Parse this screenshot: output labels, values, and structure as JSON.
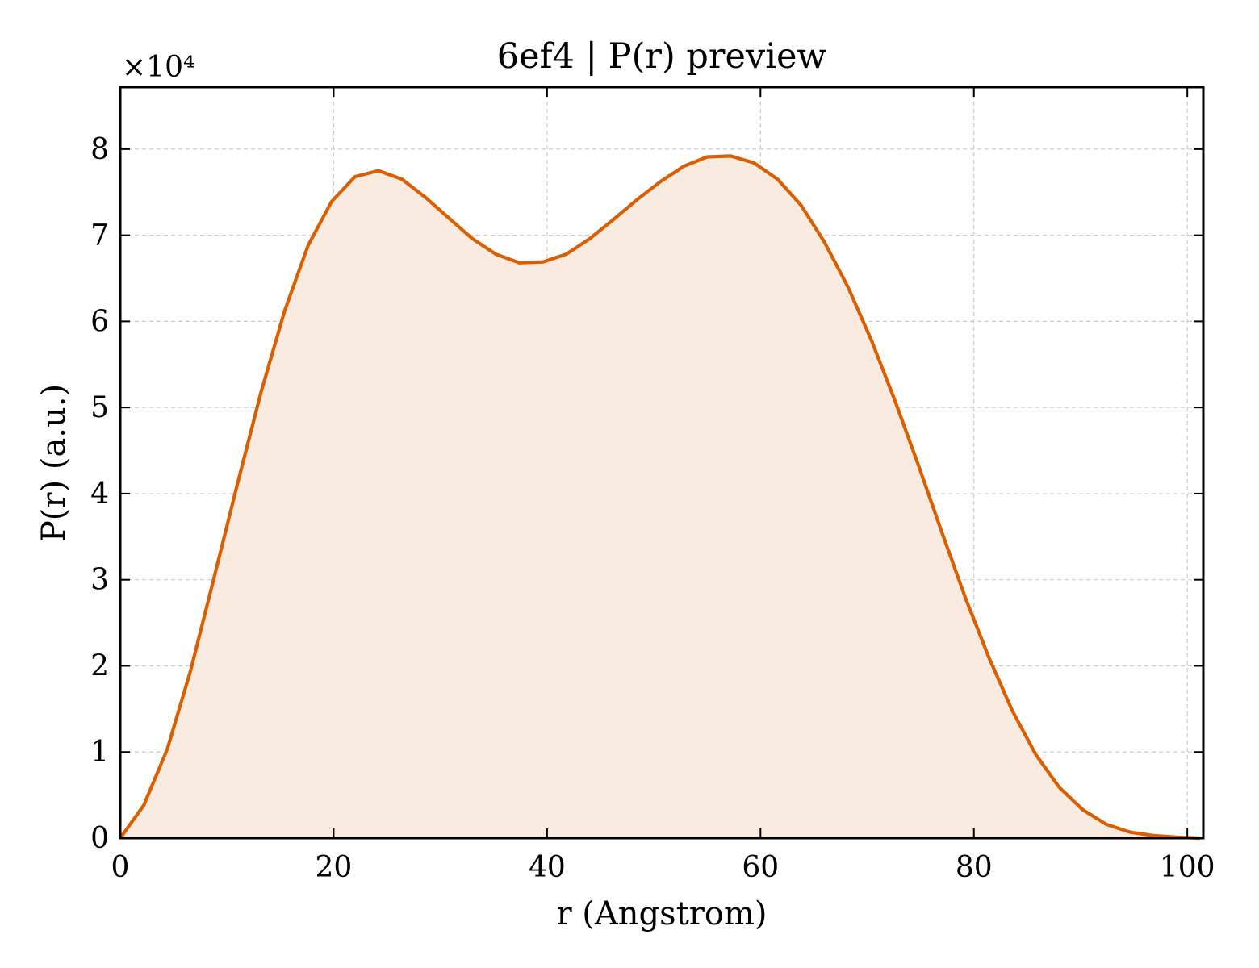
{
  "chart_data": {
    "type": "area",
    "title": "6ef4 | P(r) preview",
    "xlabel": "r (Angstrom)",
    "ylabel": "P(r) (a.u.)",
    "y_multiplier_label": "×10⁴",
    "xlim": [
      0,
      101.5
    ],
    "ylim": [
      0,
      8.72
    ],
    "xticks": [
      0,
      20,
      40,
      60,
      80,
      100
    ],
    "yticks": [
      0,
      1,
      2,
      3,
      4,
      5,
      6,
      7,
      8
    ],
    "grid": true,
    "line_color": "#d95f02",
    "fill_color": "#f9ebe0",
    "series": [
      {
        "x": [
          0,
          2.2,
          4.4,
          6.6,
          8.8,
          11.0,
          13.2,
          15.4,
          17.6,
          19.8,
          22.0,
          24.2,
          26.4,
          28.6,
          30.8,
          33.0,
          35.2,
          37.4,
          39.6,
          41.8,
          44.0,
          46.2,
          48.4,
          50.6,
          52.8,
          55.0,
          57.2,
          59.4,
          61.6,
          63.8,
          66.0,
          68.2,
          70.4,
          72.6,
          74.8,
          77.0,
          79.2,
          81.4,
          83.6,
          85.8,
          88.0,
          90.2,
          92.4,
          94.6,
          96.8,
          99.0,
          101.2
        ],
        "values": [
          0.0,
          0.38,
          1.03,
          1.95,
          3.03,
          4.12,
          5.18,
          6.12,
          6.88,
          7.39,
          7.68,
          7.75,
          7.65,
          7.44,
          7.2,
          6.96,
          6.78,
          6.68,
          6.69,
          6.78,
          6.96,
          7.18,
          7.41,
          7.62,
          7.8,
          7.91,
          7.92,
          7.84,
          7.65,
          7.35,
          6.92,
          6.4,
          5.78,
          5.08,
          4.33,
          3.55,
          2.79,
          2.1,
          1.48,
          0.97,
          0.59,
          0.33,
          0.16,
          0.07,
          0.03,
          0.01,
          0.0
        ]
      }
    ]
  }
}
